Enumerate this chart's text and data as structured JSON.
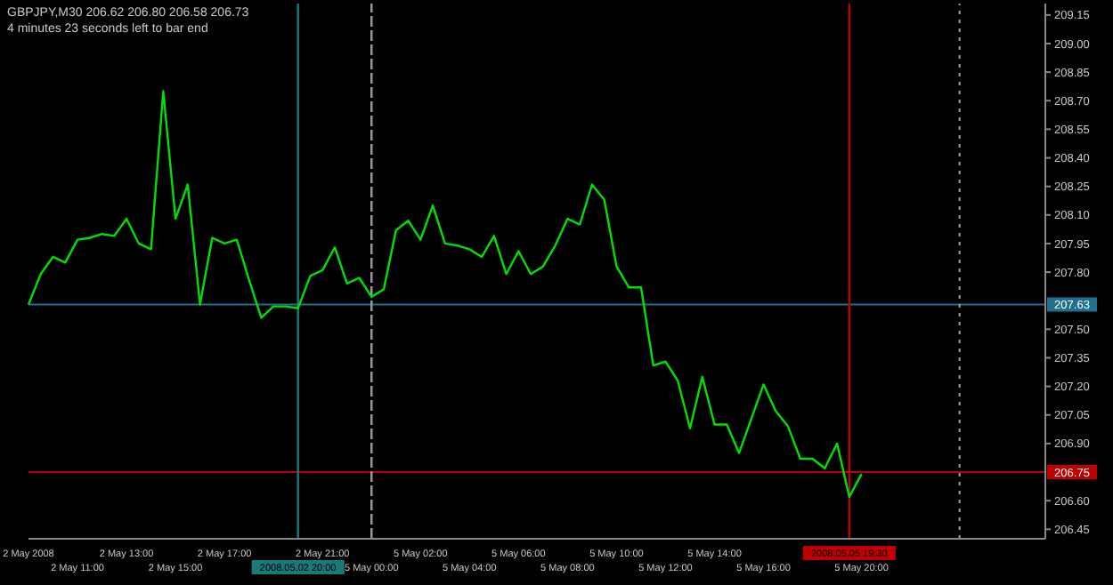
{
  "chart_data": {
    "type": "line",
    "title": "GBPJPY,M30  206.62 206.80 206.58 206.73",
    "annotations": [
      "4 minutes 23 seconds left to bar end"
    ],
    "categories": [
      "2 May 2008",
      null,
      null,
      null,
      "2 May 11:00",
      null,
      null,
      null,
      "2 May 13:00",
      null,
      null,
      null,
      "2 May 15:00",
      null,
      null,
      null,
      "2 May 17:00",
      null,
      null,
      null,
      null,
      null,
      "2008.05.02 20:00",
      null,
      "2 May 21:00",
      null,
      null,
      null,
      "5 May 00:00",
      null,
      null,
      null,
      "5 May 02:00",
      null,
      null,
      null,
      "5 May 04:00",
      null,
      null,
      null,
      "5 May 06:00",
      null,
      null,
      null,
      "5 May 08:00",
      null,
      null,
      null,
      "5 May 10:00",
      null,
      null,
      null,
      "5 May 12:00",
      null,
      null,
      null,
      "5 May 14:00",
      null,
      null,
      null,
      "5 May 16:00",
      null,
      null,
      null,
      null,
      null,
      null,
      "2008.05.05 19:30",
      "5 May 20:00",
      null,
      null,
      null,
      null,
      null,
      null,
      null,
      null,
      null,
      null,
      null,
      null,
      null,
      null,
      null
    ],
    "series": [
      {
        "color": "#00e000",
        "values": [
          207.63,
          207.79,
          207.88,
          207.85,
          207.97,
          207.98,
          208.0,
          207.99,
          208.08,
          207.95,
          207.92,
          208.75,
          208.08,
          208.26,
          207.63,
          207.98,
          207.95,
          207.97,
          207.76,
          207.56,
          207.62,
          207.62,
          207.61,
          207.78,
          207.81,
          207.93,
          207.74,
          207.77,
          207.67,
          207.71,
          208.02,
          208.07,
          207.97,
          208.15,
          207.95,
          207.94,
          207.92,
          207.88,
          207.99,
          207.79,
          207.91,
          207.79,
          207.83,
          207.94,
          208.08,
          208.05,
          208.26,
          208.18,
          207.83,
          207.72,
          207.72,
          207.31,
          207.33,
          207.23,
          206.98,
          207.25,
          207.0,
          207.0,
          206.85,
          207.03,
          207.21,
          207.07,
          206.99,
          206.82,
          206.82,
          206.77,
          206.9,
          206.62,
          206.74,
          null,
          null,
          null,
          null,
          null,
          null,
          null,
          null,
          null,
          null,
          null,
          null,
          null,
          null,
          null
        ]
      }
    ],
    "ylim": [
      206.4,
      209.21
    ],
    "yticks": [
      209.15,
      {
        "value": 209.0,
        "label": "209.00"
      },
      208.85,
      {
        "value": 208.7,
        "label": "208.70"
      },
      208.55,
      {
        "value": 208.4,
        "label": "208.40"
      },
      208.25,
      {
        "value": 208.1,
        "label": "208.10"
      },
      207.95,
      {
        "value": 207.8,
        "label": "207.80"
      },
      {
        "value": 207.5,
        "label": "207.50"
      },
      207.35,
      {
        "value": 207.2,
        "label": "207.20"
      },
      207.05,
      {
        "value": 206.9,
        "label": "206.90"
      },
      {
        "value": 206.6,
        "label": "206.60"
      },
      206.45
    ],
    "ref_lines": [
      {
        "axis": "y",
        "value": 207.63,
        "label": "207.63",
        "color": "#1f6f8f"
      },
      {
        "axis": "y",
        "value": 206.75,
        "label": "206.75",
        "color": "#c00000"
      },
      {
        "axis": "x",
        "value": "2008.05.02 20:00",
        "color": "#1a7a7a"
      },
      {
        "axis": "x",
        "value": "2008.05.05 19:30",
        "color": "#c00000"
      },
      {
        "axis": "x",
        "value": "5 May 00:00",
        "color": "#a0a0a0",
        "line_style": "dashed"
      }
    ],
    "marker": "none",
    "line_style": "solid"
  }
}
